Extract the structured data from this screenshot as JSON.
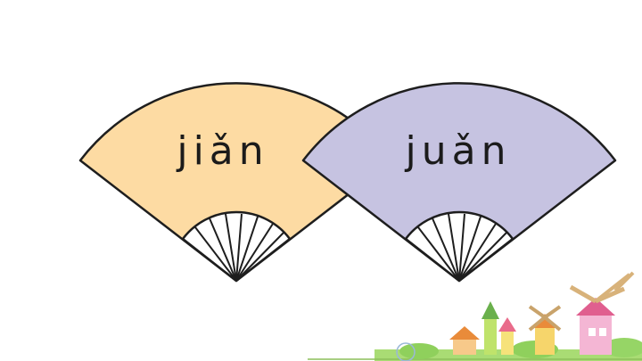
{
  "fans": [
    {
      "id": "left",
      "syllable": "jiǎn",
      "color": "#fddba3"
    },
    {
      "id": "right",
      "syllable": "juǎn",
      "color": "#c6c3e1"
    }
  ],
  "colors": {
    "outline": "#1e1e1e",
    "ground": "#9fd66a",
    "house_pink": "#f4b6d4",
    "house_yellow": "#f6e27a",
    "roof_orange": "#e98b3a"
  },
  "decoration": "village-scene-illustration"
}
